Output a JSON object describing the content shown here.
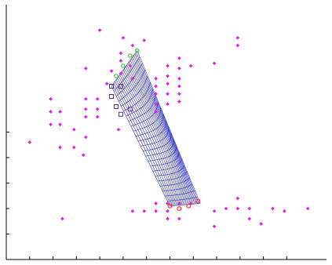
{
  "chart_data": {
    "type": "scatter",
    "title": "",
    "xlabel": "",
    "ylabel": "",
    "xlim": [
      0,
      13.7
    ],
    "ylim": [
      0,
      10
    ],
    "grid": false,
    "legend": "none",
    "x_ticks": [
      1,
      2,
      3,
      4,
      5,
      6,
      7,
      8,
      9,
      10,
      11,
      12
    ],
    "y_ticks": [
      1,
      2,
      3,
      4,
      5
    ],
    "colors": {
      "points": "#e020e0",
      "mesh": "#1a1aaa",
      "front_edge": "#2222ee",
      "top_markers": "#33cc33",
      "side_markers": "#ff3333",
      "box_markers": "#5a2a9a"
    },
    "points": [
      [
        1,
        4.6
      ],
      [
        1.9,
        6.3
      ],
      [
        1.9,
        5.8
      ],
      [
        1.9,
        5.3
      ],
      [
        2.3,
        5.8
      ],
      [
        2.3,
        5.3
      ],
      [
        2.3,
        4.4
      ],
      [
        2.4,
        1.6
      ],
      [
        2.9,
        5.1
      ],
      [
        2.9,
        4.4
      ],
      [
        3.3,
        4.1
      ],
      [
        3.4,
        6.3
      ],
      [
        3.4,
        5.9
      ],
      [
        3.4,
        5.6
      ],
      [
        3.4,
        4.8
      ],
      [
        3.4,
        7.5
      ],
      [
        3.9,
        6.3
      ],
      [
        3.9,
        5.9
      ],
      [
        3.9,
        5.6
      ],
      [
        4.0,
        9.0
      ],
      [
        4.3,
        6.9
      ],
      [
        4.5,
        7.4
      ],
      [
        4.8,
        5.1
      ],
      [
        4.9,
        8.1
      ],
      [
        4.9,
        7.8
      ],
      [
        4.9,
        7.3
      ],
      [
        5.0,
        8.7
      ],
      [
        5.3,
        7.6
      ],
      [
        5.4,
        8.4
      ],
      [
        5.4,
        7.1
      ],
      [
        5.4,
        1.9
      ],
      [
        5.9,
        8.6
      ],
      [
        5.9,
        1.9
      ],
      [
        6.4,
        7.1
      ],
      [
        6.4,
        6.8
      ],
      [
        6.4,
        6.5
      ],
      [
        6.4,
        6.1
      ],
      [
        6.4,
        5.8
      ],
      [
        6.4,
        2.2
      ],
      [
        6.4,
        1.9
      ],
      [
        6.9,
        7.6
      ],
      [
        6.9,
        7.2
      ],
      [
        6.9,
        6.9
      ],
      [
        6.9,
        6.5
      ],
      [
        6.9,
        6.1
      ],
      [
        6.9,
        2.2
      ],
      [
        6.9,
        1.9
      ],
      [
        6.9,
        1.6
      ],
      [
        7.4,
        6.2
      ],
      [
        7.4,
        7.9
      ],
      [
        7.4,
        7.5
      ],
      [
        7.4,
        7.1
      ],
      [
        7.4,
        6.8
      ],
      [
        7.4,
        6.5
      ],
      [
        7.4,
        2.2
      ],
      [
        7.4,
        1.6
      ],
      [
        7.9,
        7.6
      ],
      [
        7.9,
        2.2
      ],
      [
        8.9,
        7.7
      ],
      [
        8.9,
        1.9
      ],
      [
        8.9,
        1.3
      ],
      [
        9.4,
        2.0
      ],
      [
        9.9,
        8.7
      ],
      [
        9.9,
        8.4
      ],
      [
        9.9,
        2.4
      ],
      [
        9.9,
        2.0
      ],
      [
        10.4,
        2.0
      ],
      [
        10.4,
        1.6
      ],
      [
        10.9,
        1.4
      ],
      [
        11.4,
        2.0
      ],
      [
        11.9,
        1.9
      ],
      [
        12.9,
        2.0
      ]
    ],
    "mesh_surface": {
      "u_lines": 22,
      "v_lines": 24,
      "corner_top_left": [
        4.5,
        6.8
      ],
      "corner_top_right": [
        5.6,
        8.2
      ],
      "corner_bottom_left": [
        7.0,
        2.1
      ],
      "corner_bottom_right": [
        8.3,
        2.2
      ]
    },
    "top_markers": [
      [
        5.6,
        8.2
      ],
      [
        5.3,
        8.0
      ],
      [
        5.0,
        7.6
      ],
      [
        4.7,
        7.2
      ]
    ],
    "side_markers": [
      [
        7.0,
        2.1
      ],
      [
        7.4,
        2.0
      ],
      [
        7.8,
        2.1
      ],
      [
        8.2,
        2.3
      ]
    ],
    "box_markers": [
      [
        4.5,
        6.8
      ],
      [
        4.5,
        6.4
      ],
      [
        4.7,
        6.0
      ],
      [
        4.9,
        5.7
      ],
      [
        5.3,
        5.9
      ],
      [
        4.9,
        6.8
      ]
    ]
  }
}
